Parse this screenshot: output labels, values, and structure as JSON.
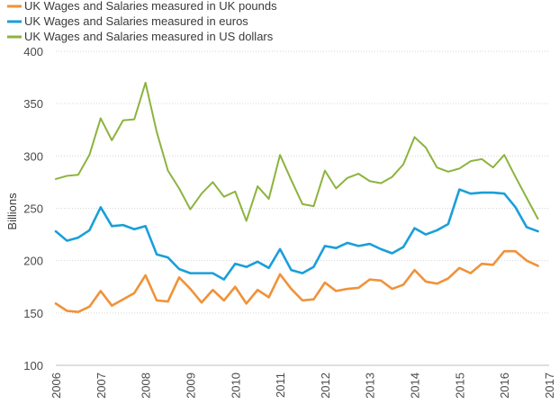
{
  "chart_data": {
    "type": "line",
    "title": "",
    "xlabel": "",
    "ylabel": "Billions",
    "xlim": [
      2006,
      2017
    ],
    "ylim": [
      100,
      400
    ],
    "x_ticks": [
      2006,
      2007,
      2008,
      2009,
      2010,
      2011,
      2012,
      2013,
      2014,
      2015,
      2016,
      2017
    ],
    "y_ticks": [
      100,
      150,
      200,
      250,
      300,
      350,
      400
    ],
    "grid": "horizontal",
    "legend_position": "top-left",
    "x": [
      2006.0,
      2006.25,
      2006.5,
      2006.75,
      2007.0,
      2007.25,
      2007.5,
      2007.75,
      2008.0,
      2008.25,
      2008.5,
      2008.75,
      2009.0,
      2009.25,
      2009.5,
      2009.75,
      2010.0,
      2010.25,
      2010.5,
      2010.75,
      2011.0,
      2011.25,
      2011.5,
      2011.75,
      2012.0,
      2012.25,
      2012.5,
      2012.75,
      2013.0,
      2013.25,
      2013.5,
      2013.75,
      2014.0,
      2014.25,
      2014.5,
      2014.75,
      2015.0,
      2015.25,
      2015.5,
      2015.75,
      2016.0,
      2016.25,
      2016.5,
      2016.75
    ],
    "series": [
      {
        "name": "UK Wages and Salaries measured in UK pounds",
        "color": "#f0923a",
        "values": [
          159,
          152,
          151,
          156,
          171,
          157,
          163,
          169,
          186,
          162,
          161,
          184,
          173,
          160,
          172,
          162,
          175,
          159,
          172,
          165,
          187,
          173,
          162,
          163,
          179,
          171,
          173,
          174,
          182,
          181,
          173,
          177,
          191,
          180,
          178,
          183,
          193,
          188,
          197,
          196,
          209,
          209,
          200,
          195
        ]
      },
      {
        "name": "UK Wages and Salaries measured in euros",
        "color": "#1a9fd9",
        "values": [
          228,
          219,
          222,
          229,
          251,
          233,
          234,
          230,
          233,
          206,
          203,
          192,
          188,
          188,
          188,
          182,
          197,
          194,
          199,
          193,
          211,
          191,
          188,
          194,
          214,
          212,
          217,
          214,
          216,
          211,
          207,
          213,
          231,
          225,
          229,
          235,
          268,
          264,
          265,
          265,
          264,
          251,
          232,
          228
        ]
      },
      {
        "name": "UK Wages and Salaries measured in US dollars",
        "color": "#8db33e",
        "values": [
          278,
          281,
          282,
          301,
          336,
          315,
          334,
          335,
          370,
          323,
          286,
          269,
          249,
          264,
          275,
          261,
          266,
          238,
          271,
          259,
          301,
          277,
          254,
          252,
          286,
          269,
          279,
          283,
          276,
          274,
          280,
          292,
          318,
          308,
          289,
          285,
          288,
          295,
          297,
          289,
          301,
          280,
          260,
          240
        ]
      }
    ]
  }
}
